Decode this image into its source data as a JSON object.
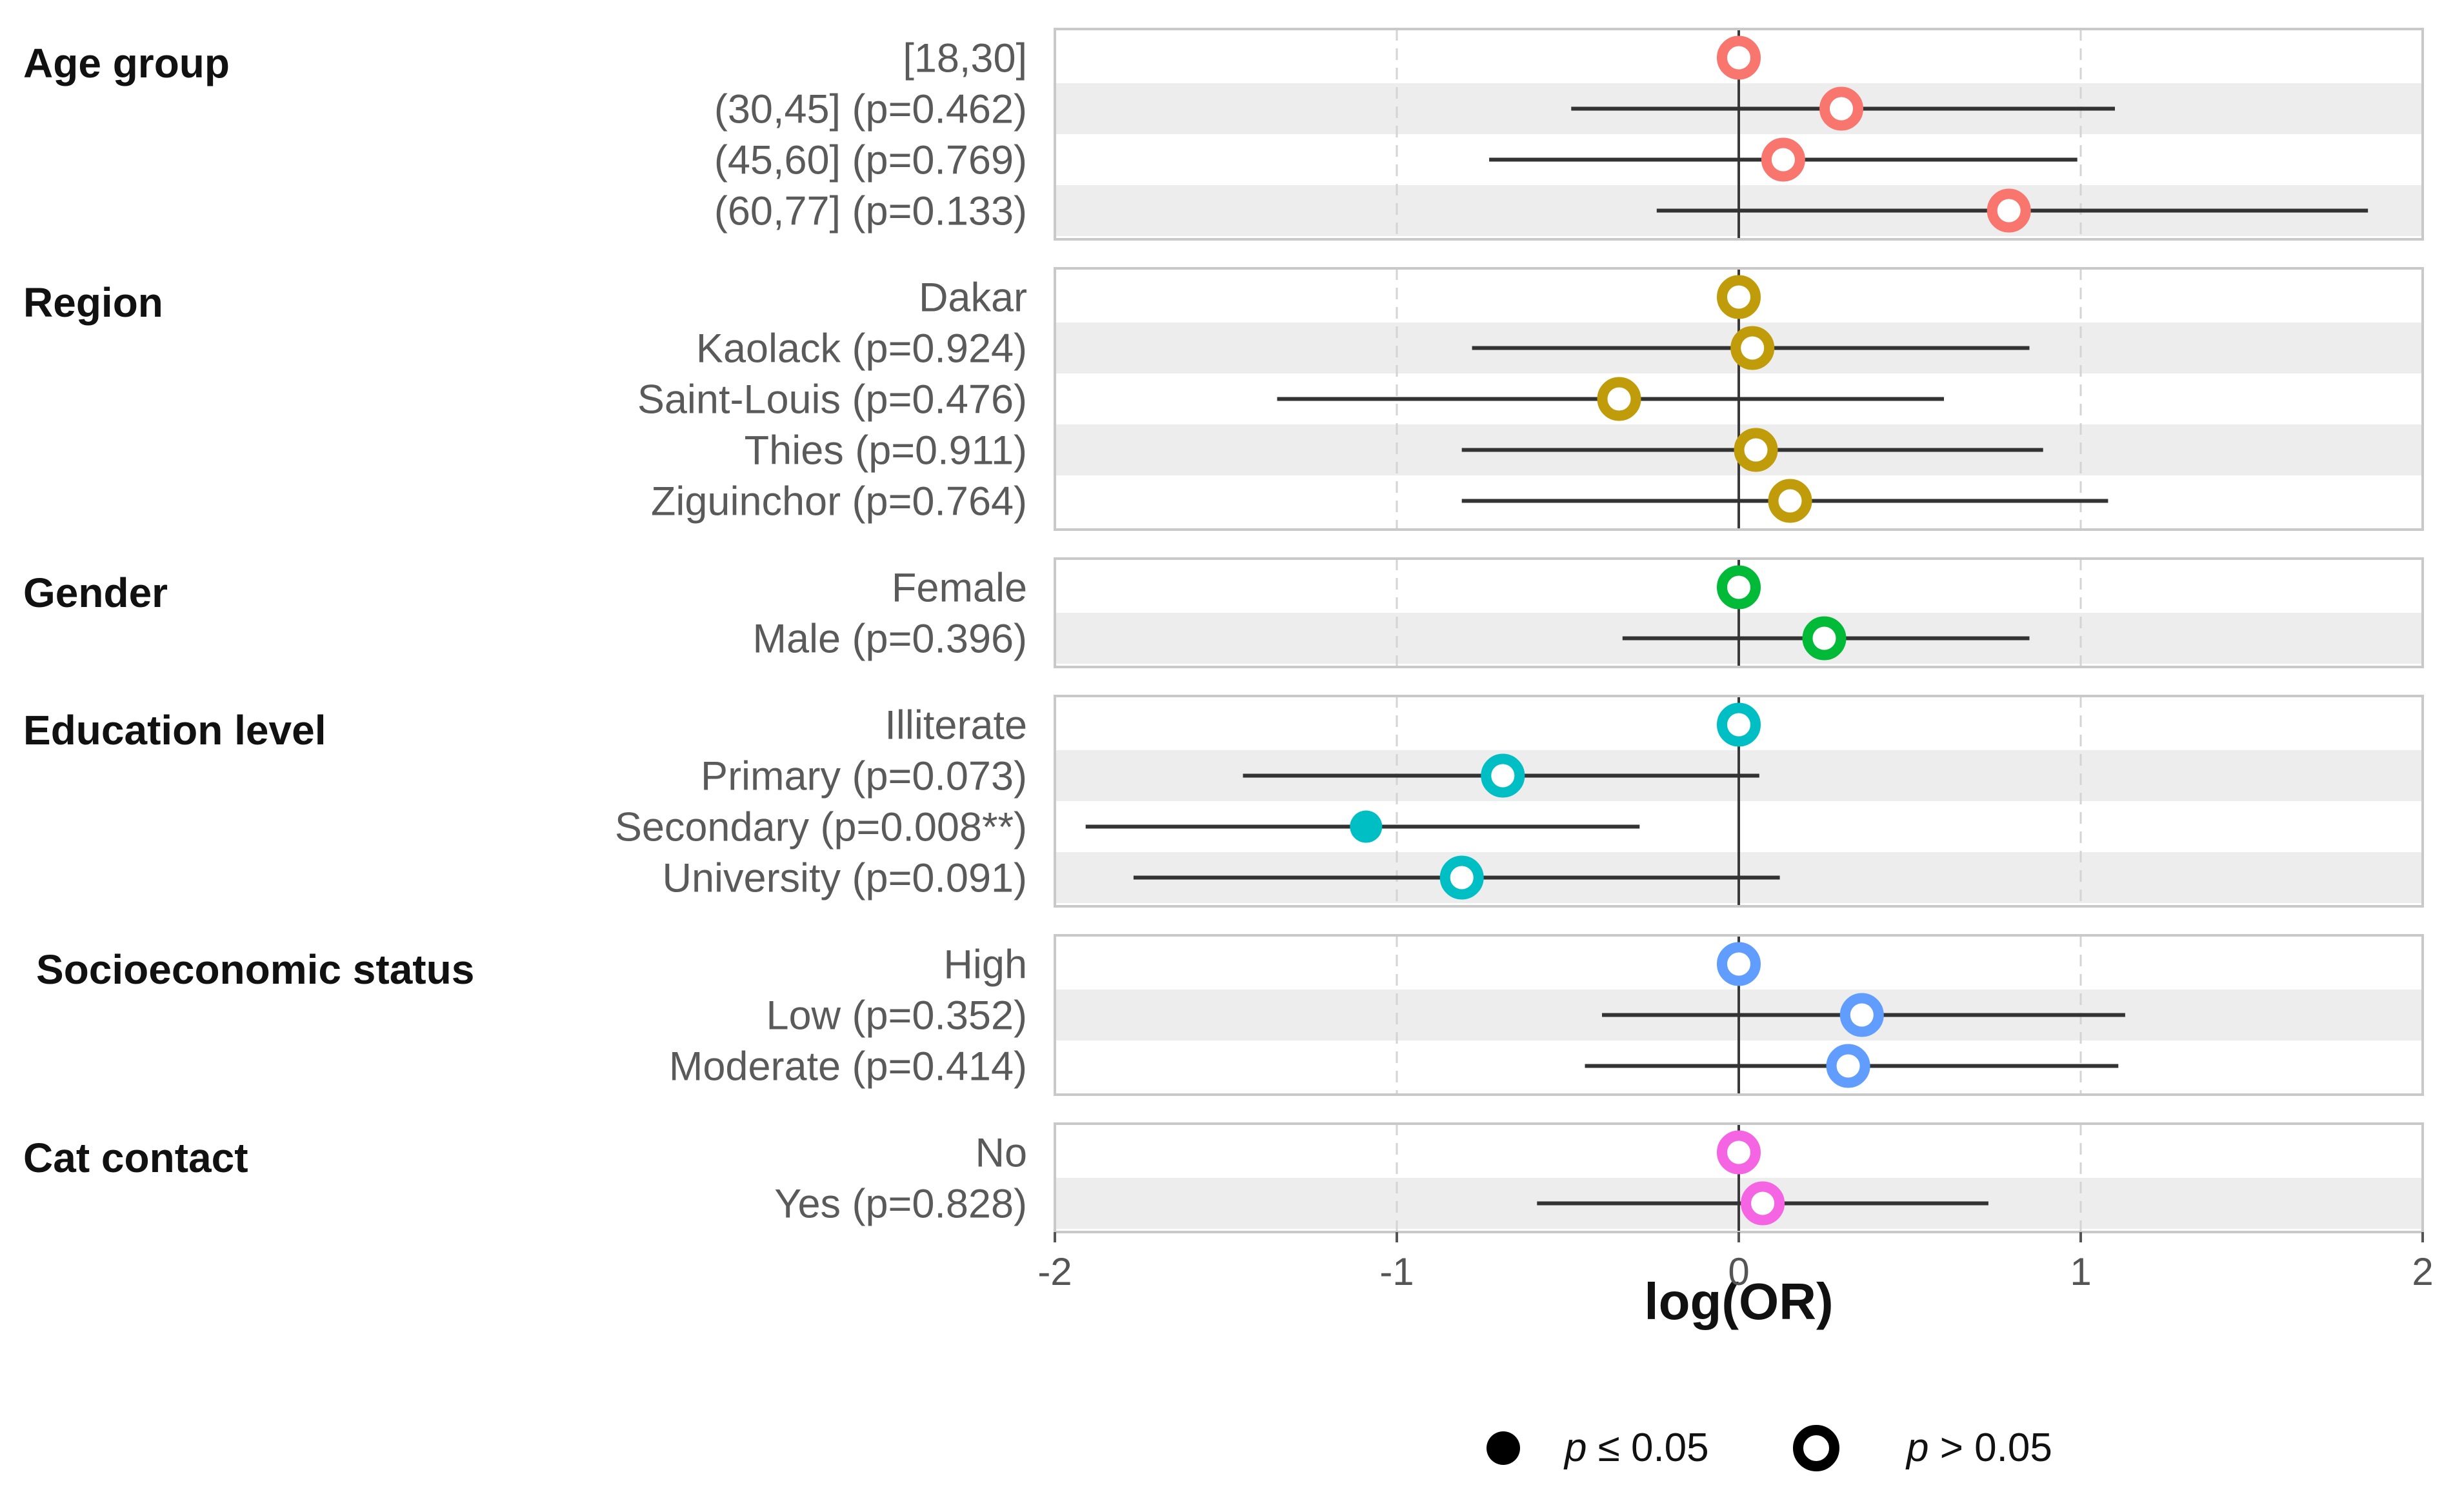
{
  "chart_data": {
    "type": "forest",
    "xlabel": "log(OR)",
    "xlim": [
      -2,
      2
    ],
    "xticks": [
      -2,
      -1,
      0,
      1,
      2
    ],
    "tick_labels": [
      "-2",
      "-1",
      "0",
      "1",
      "2"
    ],
    "groups": [
      {
        "name": "Age group",
        "color": "#F8766D",
        "rows": [
          {
            "label": "[18,30]",
            "estimate": 0,
            "lower": null,
            "upper": null,
            "significant": false
          },
          {
            "label": "(30,45] (p=0.462)",
            "estimate": 0.3,
            "lower": -0.49,
            "upper": 1.1,
            "significant": false
          },
          {
            "label": "(45,60] (p=0.769)",
            "estimate": 0.13,
            "lower": -0.73,
            "upper": 0.99,
            "significant": false
          },
          {
            "label": "(60,77] (p=0.133)",
            "estimate": 0.79,
            "lower": -0.24,
            "upper": 1.84,
            "significant": false
          }
        ]
      },
      {
        "name": "Region",
        "color": "#C09B0A",
        "rows": [
          {
            "label": "Dakar",
            "estimate": 0,
            "lower": null,
            "upper": null,
            "significant": false
          },
          {
            "label": "Kaolack (p=0.924)",
            "estimate": 0.04,
            "lower": -0.78,
            "upper": 0.85,
            "significant": false
          },
          {
            "label": "Saint-Louis (p=0.476)",
            "estimate": -0.35,
            "lower": -1.35,
            "upper": 0.6,
            "significant": false
          },
          {
            "label": "Thies (p=0.911)",
            "estimate": 0.05,
            "lower": -0.81,
            "upper": 0.89,
            "significant": false
          },
          {
            "label": "Ziguinchor (p=0.764)",
            "estimate": 0.15,
            "lower": -0.81,
            "upper": 1.08,
            "significant": false
          }
        ]
      },
      {
        "name": "Gender",
        "color": "#00BA38",
        "rows": [
          {
            "label": "Female",
            "estimate": 0,
            "lower": null,
            "upper": null,
            "significant": false
          },
          {
            "label": "Male (p=0.396)",
            "estimate": 0.25,
            "lower": -0.34,
            "upper": 0.85,
            "significant": false
          }
        ]
      },
      {
        "name": "Education level",
        "color": "#00BFC4",
        "rows": [
          {
            "label": "Illiterate",
            "estimate": 0,
            "lower": null,
            "upper": null,
            "significant": false
          },
          {
            "label": "Primary (p=0.073)",
            "estimate": -0.69,
            "lower": -1.45,
            "upper": 0.06,
            "significant": false
          },
          {
            "label": "Secondary (p=0.008**)",
            "estimate": -1.09,
            "lower": -1.91,
            "upper": -0.29,
            "significant": true
          },
          {
            "label": "University (p=0.091)",
            "estimate": -0.81,
            "lower": -1.77,
            "upper": 0.12,
            "significant": false
          }
        ]
      },
      {
        "name": "Socioeconomic status",
        "color": "#619CFF",
        "rows": [
          {
            "label": "High",
            "estimate": 0,
            "lower": null,
            "upper": null,
            "significant": false
          },
          {
            "label": "Low (p=0.352)",
            "estimate": 0.36,
            "lower": -0.4,
            "upper": 1.13,
            "significant": false
          },
          {
            "label": "Moderate (p=0.414)",
            "estimate": 0.32,
            "lower": -0.45,
            "upper": 1.11,
            "significant": false
          }
        ]
      },
      {
        "name": "Cat contact",
        "color": "#F564E3",
        "rows": [
          {
            "label": "No",
            "estimate": 0,
            "lower": null,
            "upper": null,
            "significant": false
          },
          {
            "label": "Yes (p=0.828)",
            "estimate": 0.07,
            "lower": -0.59,
            "upper": 0.73,
            "significant": false
          }
        ]
      }
    ],
    "legend": [
      {
        "symbol": "filled",
        "p": "p",
        "condition": " ≤ 0.05"
      },
      {
        "symbol": "open",
        "p": "p",
        "condition": " > 0.05"
      }
    ]
  }
}
